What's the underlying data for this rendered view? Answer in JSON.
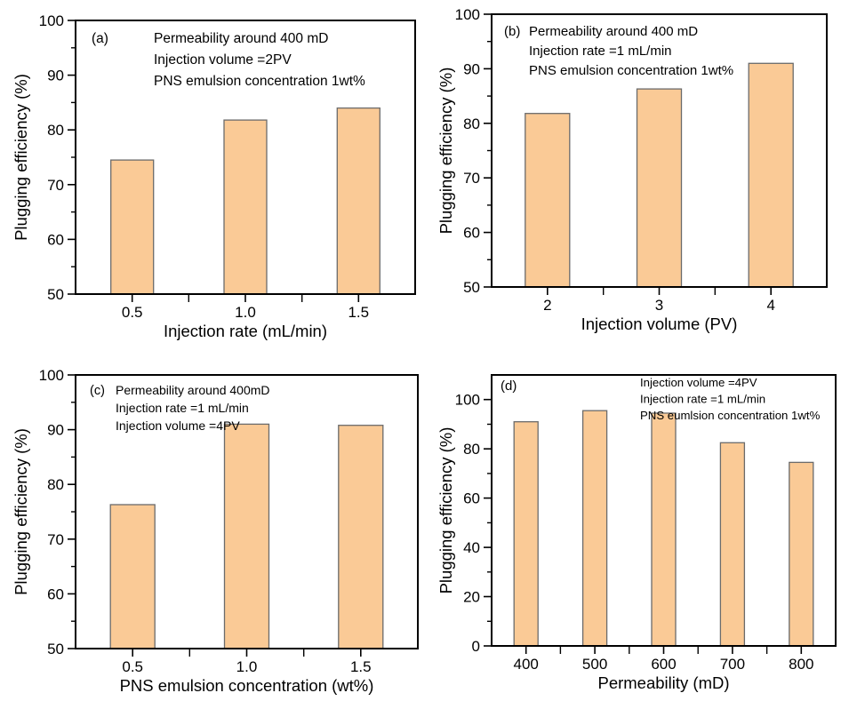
{
  "style": {
    "background": "#ffffff",
    "bar_fill": "#FACA96",
    "bar_edge": "#6b6b6b",
    "axis_color": "#000000",
    "text_color": "#000000"
  },
  "chart_data": [
    {
      "type": "bar",
      "panel_label": "(a)",
      "categories": [
        "0.5",
        "1.0",
        "1.5"
      ],
      "values": [
        74.5,
        81.8,
        84.0
      ],
      "xlabel": "Injection rate (mL/min)",
      "ylabel": "Plugging efficiency (%)",
      "ylim": [
        50,
        100
      ],
      "yticks": [
        50,
        60,
        70,
        80,
        90,
        100
      ],
      "yminors": [
        55,
        65,
        75,
        85,
        95
      ],
      "grid": false,
      "legend": "none",
      "annotation": [
        "Permeability around 400 mD",
        "Injection volume =2PV",
        "PNS emulsion concentration 1wt%"
      ]
    },
    {
      "type": "bar",
      "panel_label": "(b)",
      "categories": [
        "2",
        "3",
        "4"
      ],
      "values": [
        81.8,
        86.3,
        91.0
      ],
      "xlabel": "Injection volume (PV)",
      "ylabel": "Plugging efficiency (%)",
      "ylim": [
        50,
        100
      ],
      "yticks": [
        50,
        60,
        70,
        80,
        90,
        100
      ],
      "yminors": [
        55,
        65,
        75,
        85,
        95
      ],
      "grid": false,
      "legend": "none",
      "annotation": [
        "Permeability around 400 mD",
        "Injection rate =1 mL/min",
        "PNS emulsion concentration 1wt%"
      ]
    },
    {
      "type": "bar",
      "panel_label": "(c)",
      "categories": [
        "0.5",
        "1.0",
        "1.5"
      ],
      "values": [
        76.3,
        91.0,
        90.8
      ],
      "xlabel": "PNS emulsion concentration (wt%)",
      "ylabel": "Plugging efficiency (%)",
      "ylim": [
        50,
        100
      ],
      "yticks": [
        50,
        60,
        70,
        80,
        90,
        100
      ],
      "yminors": [
        55,
        65,
        75,
        85,
        95
      ],
      "grid": false,
      "legend": "none",
      "annotation": [
        "Permeability around 400mD",
        "Injection rate =1 mL/min",
        "Injection volume =4PV"
      ]
    },
    {
      "type": "bar",
      "panel_label": "(d)",
      "categories": [
        "400",
        "500",
        "600",
        "700",
        "800"
      ],
      "values": [
        91.0,
        95.5,
        94.5,
        82.5,
        74.5
      ],
      "xlabel": "Permeability (mD)",
      "ylabel": "Plugging efficiency (%)",
      "ylim": [
        0,
        110
      ],
      "yticks": [
        0,
        20,
        40,
        60,
        80,
        100
      ],
      "yminors": [
        10,
        30,
        50,
        70,
        90
      ],
      "grid": false,
      "legend": "none",
      "annotation": [
        "Injection volume =4PV",
        "Injection rate =1 mL/min",
        "PNS eumlsion concentration 1wt%"
      ]
    }
  ]
}
